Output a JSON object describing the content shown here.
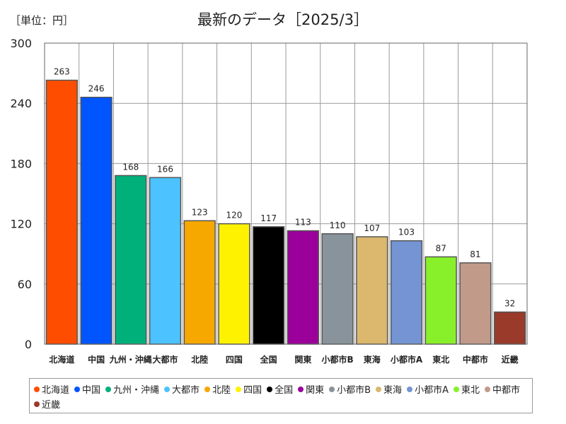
{
  "unit_label": "［単位：円］",
  "chart_data": {
    "type": "bar",
    "title": "最新のデータ［2025/3］",
    "categories": [
      "北海道",
      "中国",
      "九州・沖縄",
      "大都市",
      "北陸",
      "四国",
      "全国",
      "関東",
      "小都市B",
      "東海",
      "小都市A",
      "東北",
      "中都市",
      "近畿"
    ],
    "values": [
      263,
      246,
      168,
      166,
      123,
      120,
      117,
      113,
      110,
      107,
      103,
      87,
      81,
      32
    ],
    "colors": [
      "#ff4d00",
      "#0055ff",
      "#00b07a",
      "#4cc3ff",
      "#f7a800",
      "#fff200",
      "#000000",
      "#9b009b",
      "#89939b",
      "#dbb86e",
      "#7494d4",
      "#88f02a",
      "#c19a8a",
      "#9a3a2a"
    ],
    "ylim": [
      0,
      300
    ],
    "yticks": [
      0,
      60,
      120,
      180,
      240,
      300
    ],
    "grid": true,
    "legend_placement": "bottom"
  }
}
